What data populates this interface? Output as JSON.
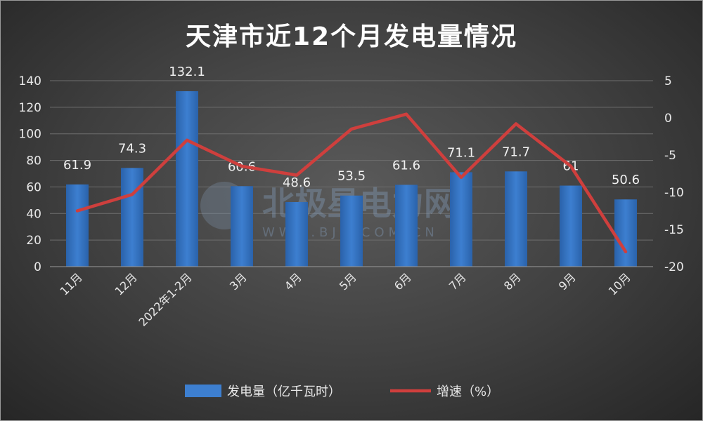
{
  "title": "天津市近12个月发电量情况",
  "watermark": {
    "brand": "北极星电力网",
    "url": "WWW.BJX.COM.CN"
  },
  "colors": {
    "bar": "#3d7fd0",
    "bar_dark": "#2a62aa",
    "line": "#cf3f3d",
    "grid": "#6e6e6e"
  },
  "chart_data": {
    "type": "bar+line",
    "title": "天津市近12个月发电量情况",
    "categories": [
      "11月",
      "12月",
      "2022年1-2月",
      "3月",
      "4月",
      "5月",
      "6月",
      "7月",
      "8月",
      "9月",
      "10月"
    ],
    "series": [
      {
        "name": "发电量（亿千瓦时）",
        "type": "bar",
        "axis": "left",
        "values": [
          61.9,
          74.3,
          132.1,
          60.6,
          48.6,
          53.5,
          61.6,
          71.1,
          71.7,
          61,
          50.6
        ],
        "labels": [
          "61.9",
          "74.3",
          "132.1",
          "60.6",
          "48.6",
          "53.5",
          "61.6",
          "71.1",
          "71.7",
          "61",
          "50.6"
        ]
      },
      {
        "name": "增速（%）",
        "type": "line",
        "axis": "right",
        "values": [
          -12.5,
          -10.3,
          -3.0,
          -6.5,
          -7.7,
          -1.5,
          0.5,
          -8.0,
          -0.8,
          -6.5,
          -18.0
        ]
      }
    ],
    "left_axis": {
      "min": 0,
      "max": 140,
      "ticks": [
        "0",
        "20",
        "40",
        "60",
        "80",
        "100",
        "120",
        "140"
      ]
    },
    "right_axis": {
      "min": -20,
      "max": 5,
      "ticks": [
        "-20",
        "-15",
        "-10",
        "-5",
        "0",
        "5"
      ]
    },
    "grid": true,
    "legend_position": "bottom"
  }
}
